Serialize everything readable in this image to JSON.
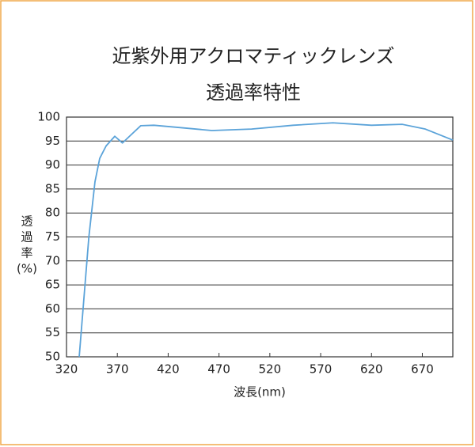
{
  "chart_data": {
    "type": "line",
    "title": [
      "近紫外用アクロマティックレンズ",
      "透過率特性"
    ],
    "ylabel": [
      "透",
      "過",
      "率",
      "(%)"
    ],
    "xlabel": "波長(nm)",
    "xlim": [
      320,
      700
    ],
    "xticks": [
      320,
      370,
      420,
      470,
      520,
      570,
      620,
      670
    ],
    "ylim": [
      50,
      100
    ],
    "yticks": [
      50,
      55,
      60,
      65,
      70,
      75,
      80,
      85,
      90,
      95,
      100
    ],
    "grid": true,
    "series": [
      {
        "color": "#5ba3d9",
        "x": [
          332.5,
          342,
          348,
          352.7,
          359,
          367.5,
          375,
          383,
          393,
          406,
          432,
          463,
          502,
          543,
          582,
          620,
          650,
          673,
          700
        ],
        "values": [
          50,
          75,
          86.5,
          91.4,
          94,
          96,
          94.6,
          96.2,
          98.2,
          98.3,
          97.8,
          97.2,
          97.5,
          98.3,
          98.8,
          98.3,
          98.5,
          97.5,
          95.2
        ]
      }
    ]
  }
}
